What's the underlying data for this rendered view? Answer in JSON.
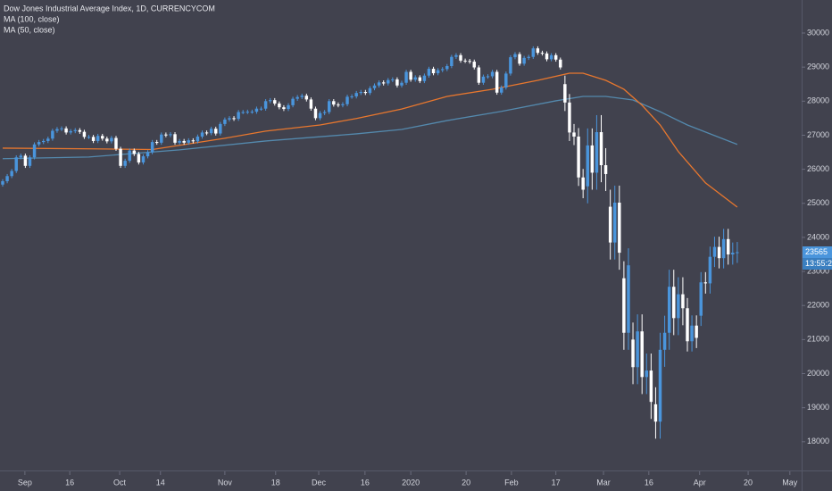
{
  "chart_data": {
    "type": "candlestick",
    "title": "Dow Jones Industrial Average Index, 1D, CURRENCYCOM",
    "up_color": "#4a95dc",
    "down_color": "#ffffff",
    "open": [
      25550,
      25650,
      25800,
      25950,
      26350,
      26400,
      26100,
      26350,
      26730,
      26800,
      26830,
      26900,
      27130,
      27180,
      27200,
      27080,
      27120,
      27150,
      27100,
      26950,
      26950,
      26830,
      26980,
      26900,
      26820,
      26920,
      26600,
      26100,
      26250,
      26550,
      26450,
      26200,
      26380,
      26500,
      26800,
      26780,
      27020,
      27000,
      27030,
      26780,
      26830,
      26780,
      26850,
      26820,
      26960,
      27080,
      27060,
      27190,
      27050,
      27330,
      27460,
      27500,
      27480,
      27680,
      27680,
      27690,
      27690,
      27780,
      27780,
      28000,
      28030,
      27930,
      27820,
      27770,
      27880,
      28070,
      28120,
      28160,
      28050,
      27780,
      27500,
      27650,
      27680,
      28000,
      27900,
      27880,
      27910,
      28130,
      28140,
      28240,
      28270,
      28240,
      28380,
      28460,
      28550,
      28520,
      28620,
      28640,
      28460,
      28540,
      28860,
      28630,
      28700,
      28590,
      28750,
      28950,
      28820,
      28910,
      28940,
      29030,
      29300,
      29350,
      29190,
      29180,
      29160,
      28990,
      28540,
      28720,
      28730,
      28860,
      28250,
      28400,
      28810,
      29290,
      29380,
      29100,
      29270,
      29300,
      29550,
      29420,
      29400,
      29230,
      29350,
      29220,
      28500,
      27960,
      27080,
      26960,
      25760,
      25500,
      26700,
      25900,
      27090,
      26120,
      24900,
      23850,
      25020,
      22800,
      21200,
      21000,
      20190,
      21240,
      19900,
      20090,
      19100,
      18590,
      20700,
      21200,
      22550,
      21630,
      22330,
      21920,
      20950,
      21410,
      21700,
      22680,
      22650,
      23430,
      23720,
      23390,
      23950,
      23500,
      23550
    ],
    "high": [
      25710,
      25860,
      26010,
      26410,
      26460,
      26460,
      26410,
      26790,
      26860,
      26890,
      26960,
      27190,
      27240,
      27260,
      27260,
      27180,
      27210,
      27210,
      27160,
      27010,
      27010,
      27040,
      27040,
      26960,
      26980,
      26980,
      26660,
      26310,
      26610,
      26610,
      26510,
      26440,
      26560,
      26860,
      26860,
      27080,
      27080,
      27090,
      27090,
      26890,
      26890,
      26910,
      26910,
      27020,
      27140,
      27140,
      27250,
      27250,
      27390,
      27520,
      27560,
      27560,
      27740,
      27740,
      27750,
      27750,
      27840,
      27840,
      28060,
      28090,
      28090,
      27990,
      27880,
      27940,
      28130,
      28180,
      28220,
      28220,
      28110,
      27840,
      27710,
      27740,
      28060,
      28060,
      27960,
      27970,
      28190,
      28200,
      28300,
      28330,
      28330,
      28440,
      28520,
      28610,
      28610,
      28680,
      28700,
      28700,
      28600,
      28920,
      28920,
      28760,
      28760,
      28810,
      29010,
      29010,
      28970,
      29000,
      29090,
      29360,
      29410,
      29410,
      29250,
      29240,
      29220,
      29050,
      28780,
      28790,
      28920,
      28920,
      28460,
      28870,
      29350,
      29440,
      29440,
      29330,
      29360,
      29610,
      29610,
      29480,
      29460,
      29410,
      29410,
      29280,
      28750,
      28210,
      27330,
      27210,
      26010,
      27200,
      27200,
      27590,
      27590,
      26620,
      25400,
      25520,
      25520,
      23300,
      23680,
      21500,
      21740,
      21740,
      20590,
      20590,
      19600,
      21200,
      21700,
      23050,
      23050,
      22830,
      22830,
      22220,
      21710,
      21710,
      22980,
      22980,
      23730,
      24020,
      24020,
      24250,
      24250,
      23850,
      23865
    ],
    "low": [
      25490,
      25590,
      25740,
      25890,
      26290,
      26040,
      26040,
      26290,
      26670,
      26740,
      26770,
      26840,
      27070,
      27120,
      27020,
      27020,
      27060,
      27040,
      26890,
      26890,
      26770,
      26770,
      26840,
      26760,
      26760,
      26540,
      26040,
      26040,
      26190,
      26390,
      26140,
      26140,
      26320,
      26440,
      26720,
      26720,
      26940,
      26940,
      26720,
      26720,
      26720,
      26720,
      26760,
      26760,
      26900,
      27000,
      27000,
      26990,
      26990,
      27270,
      27400,
      27420,
      27420,
      27620,
      27620,
      27630,
      27630,
      27720,
      27720,
      27940,
      27870,
      27760,
      27710,
      27710,
      27820,
      28010,
      28060,
      27990,
      27720,
      27440,
      27440,
      27590,
      27620,
      27840,
      27820,
      27820,
      27850,
      28070,
      28080,
      28180,
      28180,
      28180,
      28320,
      28400,
      28460,
      28460,
      28560,
      28400,
      28400,
      28480,
      28570,
      28570,
      28530,
      28530,
      28690,
      28760,
      28760,
      28850,
      28880,
      28970,
      29240,
      29130,
      29120,
      29100,
      28930,
      28480,
      28480,
      28660,
      28670,
      28190,
      28190,
      28340,
      28750,
      29230,
      29040,
      29040,
      29210,
      29240,
      29360,
      29340,
      29170,
      29170,
      29160,
      28930,
      27710,
      26830,
      26710,
      25510,
      25150,
      25000,
      25400,
      25400,
      25620,
      25360,
      23350,
      23350,
      23050,
      20700,
      20700,
      19690,
      19690,
      19400,
      19400,
      18670,
      18090,
      18090,
      20200,
      20700,
      21130,
      21130,
      21420,
      20650,
      20650,
      20750,
      21400,
      22350,
      22350,
      23130,
      23090,
      23090,
      23200,
      23200,
      23250
    ],
    "close": [
      25650,
      25800,
      25950,
      26350,
      26400,
      26100,
      26350,
      26730,
      26800,
      26830,
      26900,
      27130,
      27180,
      27200,
      27080,
      27120,
      27150,
      27100,
      26950,
      26950,
      26830,
      26980,
      26900,
      26820,
      26920,
      26600,
      26100,
      26250,
      26550,
      26450,
      26200,
      26380,
      26500,
      26800,
      26780,
      27020,
      27000,
      27030,
      26780,
      26830,
      26780,
      26850,
      26820,
      26960,
      27080,
      27060,
      27190,
      27050,
      27330,
      27460,
      27500,
      27480,
      27680,
      27680,
      27690,
      27690,
      27780,
      27780,
      28000,
      28030,
      27930,
      27820,
      27770,
      27880,
      28070,
      28120,
      28160,
      28050,
      27780,
      27500,
      27650,
      27680,
      28000,
      27900,
      27880,
      27910,
      28130,
      28140,
      28240,
      28270,
      28240,
      28380,
      28460,
      28550,
      28520,
      28620,
      28640,
      28460,
      28540,
      28860,
      28630,
      28700,
      28590,
      28750,
      28950,
      28820,
      28910,
      28940,
      29030,
      29300,
      29350,
      29190,
      29180,
      29160,
      28990,
      28540,
      28720,
      28730,
      28860,
      28250,
      28400,
      28810,
      29290,
      29380,
      29100,
      29270,
      29300,
      29550,
      29420,
      29400,
      29230,
      29350,
      29220,
      28990,
      27960,
      27080,
      26960,
      25760,
      25400,
      26700,
      25900,
      27090,
      26120,
      25860,
      23850,
      25020,
      23550,
      21200,
      23180,
      20190,
      21240,
      19900,
      20090,
      19170,
      18590,
      20700,
      21200,
      22550,
      21630,
      22330,
      21920,
      20950,
      21410,
      21050,
      22680,
      22650,
      23430,
      23720,
      23390,
      23950,
      23500,
      23550,
      23565
    ],
    "series": [
      {
        "name": "MA (100, close)",
        "color": "#5489ad",
        "x": [
          0,
          19,
          39,
          58,
          78,
          88,
          98,
          110,
          122,
          128,
          133,
          139,
          145,
          151,
          157,
          162
        ],
        "values": [
          26310,
          26360,
          26570,
          26830,
          27040,
          27170,
          27430,
          27700,
          28010,
          28140,
          28140,
          28035,
          27690,
          27300,
          26990,
          26730
        ]
      },
      {
        "name": "MA (50, close)",
        "color": "#e8772e",
        "x": [
          0,
          20,
          33,
          49,
          58,
          70,
          78,
          88,
          98,
          108,
          118,
          125,
          128,
          133,
          137,
          141,
          145,
          149,
          155,
          162
        ],
        "values": [
          26620,
          26600,
          26580,
          26910,
          27120,
          27300,
          27490,
          27770,
          28140,
          28350,
          28610,
          28820,
          28820,
          28610,
          28350,
          27880,
          27300,
          26520,
          25600,
          24890
        ]
      }
    ],
    "xlim": [
      -0.59,
      176.2
    ],
    "xticks": [
      {
        "value": 4.9,
        "label": "Sep"
      },
      {
        "value": 14.8,
        "label": "16"
      },
      {
        "value": 25.8,
        "label": "Oct"
      },
      {
        "value": 34.8,
        "label": "14"
      },
      {
        "value": 49,
        "label": "Nov"
      },
      {
        "value": 60.2,
        "label": "18"
      },
      {
        "value": 69.7,
        "label": "Dec"
      },
      {
        "value": 79.9,
        "label": "16"
      },
      {
        "value": 90,
        "label": "2020"
      },
      {
        "value": 102.2,
        "label": "20"
      },
      {
        "value": 112.2,
        "label": "Feb"
      },
      {
        "value": 122,
        "label": "17"
      },
      {
        "value": 132.5,
        "label": "Mar"
      },
      {
        "value": 142.5,
        "label": "16"
      },
      {
        "value": 153.7,
        "label": "Apr"
      },
      {
        "value": 164.4,
        "label": "20"
      },
      {
        "value": 173.6,
        "label": "May"
      }
    ],
    "ylim": [
      17340,
      30970
    ],
    "yticks": [
      18000,
      19000,
      20000,
      21000,
      22000,
      23000,
      24000,
      25000,
      26000,
      27000,
      28000,
      29000,
      30000
    ],
    "last_price": 23565,
    "countdown": "13:55:22"
  }
}
